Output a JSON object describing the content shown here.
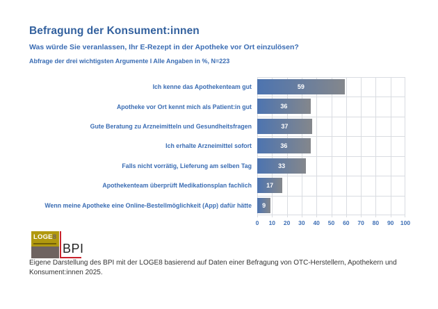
{
  "header": {
    "title": "Befragung der Konsument:innen",
    "question": "Was würde Sie veranlassen, Ihr E-Rezept in der Apotheke vor Ort einzulösen?",
    "note": "Abfrage der drei wichtigsten Argumente I Alle Angaben in %, N=223"
  },
  "chart_data": {
    "type": "bar",
    "orientation": "horizontal",
    "categories": [
      "Ich kenne das Apothekenteam gut",
      "Apotheke vor Ort kennt mich als Patient:in gut",
      "Gute Beratung zu Arzneimitteln und Gesundheitsfragen",
      "Ich erhalte Arzneimittel sofort",
      "Falls nicht vorrätig, Lieferung am selben Tag",
      "Apothekenteam überprüft Medikationsplan fachlich",
      "Wenn meine Apotheke eine Online-Bestellmöglichkeit (App) dafür hätte"
    ],
    "values": [
      59,
      36,
      37,
      36,
      33,
      17,
      9
    ],
    "xlim": [
      0,
      100
    ],
    "x_ticks": [
      0,
      10,
      20,
      30,
      40,
      50,
      60,
      70,
      80,
      90,
      100
    ],
    "grid": true,
    "value_labels": "inside-center",
    "bar_gradient_start": "#4d74b0",
    "bar_gradient_end": "#84878c",
    "value_label_color": "#ffffff"
  },
  "logos": {
    "loge8_main": "LOGE",
    "loge8_eight": "8",
    "bpi_text": "BPI"
  },
  "footer": {
    "source": "Eigene Darstellung des BPI mit der LOGE8 basierend auf Daten einer Befragung von OTC-Herstellern, Apothekern und Konsument:innen 2025."
  },
  "colors": {
    "title_blue": "#33619e",
    "accent_blue": "#3a6cb3",
    "tick_blue": "#3e6fb5",
    "grid": "#d9dce1",
    "bpi_red": "#c9232d",
    "loge8_yellow": "#b1990f",
    "loge8_gray": "#6e6360",
    "footer_text": "#333333"
  }
}
